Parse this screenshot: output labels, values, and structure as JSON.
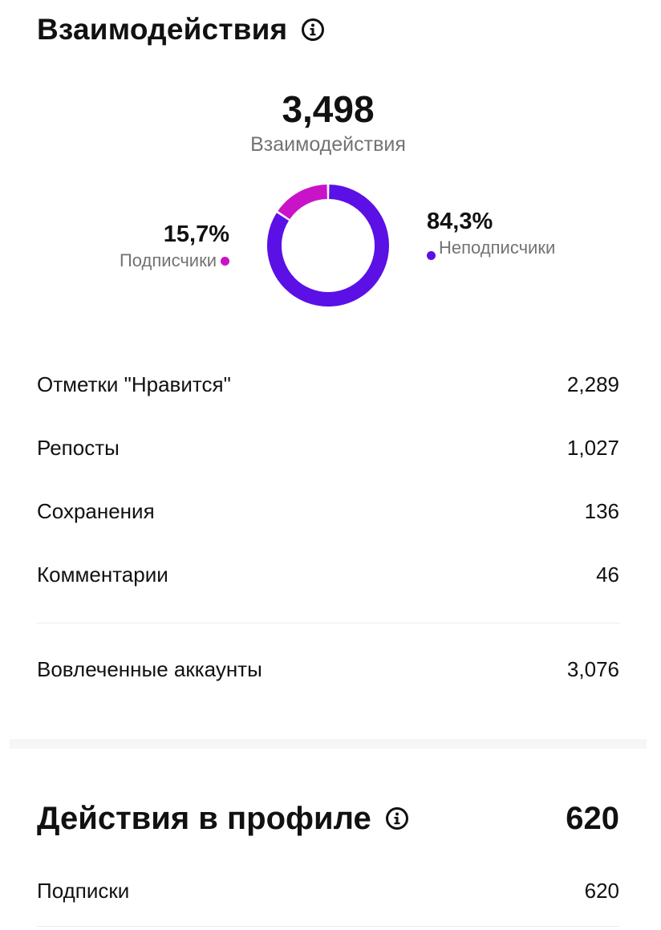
{
  "interactions_section": {
    "title": "Взаимодействия",
    "info_icon": "info-circle-icon",
    "total_value": "3,498",
    "total_label": "Взаимодействия",
    "chart_data": {
      "type": "pie",
      "categories": [
        "Подписчики",
        "Неподписчики"
      ],
      "values": [
        15.7,
        84.3
      ],
      "colors": [
        "#c913c9",
        "#5b10e6"
      ]
    },
    "legend": {
      "followers": {
        "percent": "15,7%",
        "label": "Подписчики",
        "color": "#c913c9"
      },
      "non_followers": {
        "percent": "84,3%",
        "label": "Неподписчики",
        "color": "#5b10e6"
      }
    },
    "metrics": [
      {
        "label": "Отметки \"Нравится\"",
        "value": "2,289"
      },
      {
        "label": "Репосты",
        "value": "1,027"
      },
      {
        "label": "Сохранения",
        "value": "136"
      },
      {
        "label": "Комментарии",
        "value": "46"
      }
    ],
    "engaged_accounts": {
      "label": "Вовлеченные аккаунты",
      "value": "3,076"
    }
  },
  "profile_section": {
    "title": "Действия в профиле",
    "info_icon": "info-circle-icon",
    "total": "620",
    "rows": [
      {
        "label": "Подписки",
        "value": "620"
      }
    ]
  }
}
